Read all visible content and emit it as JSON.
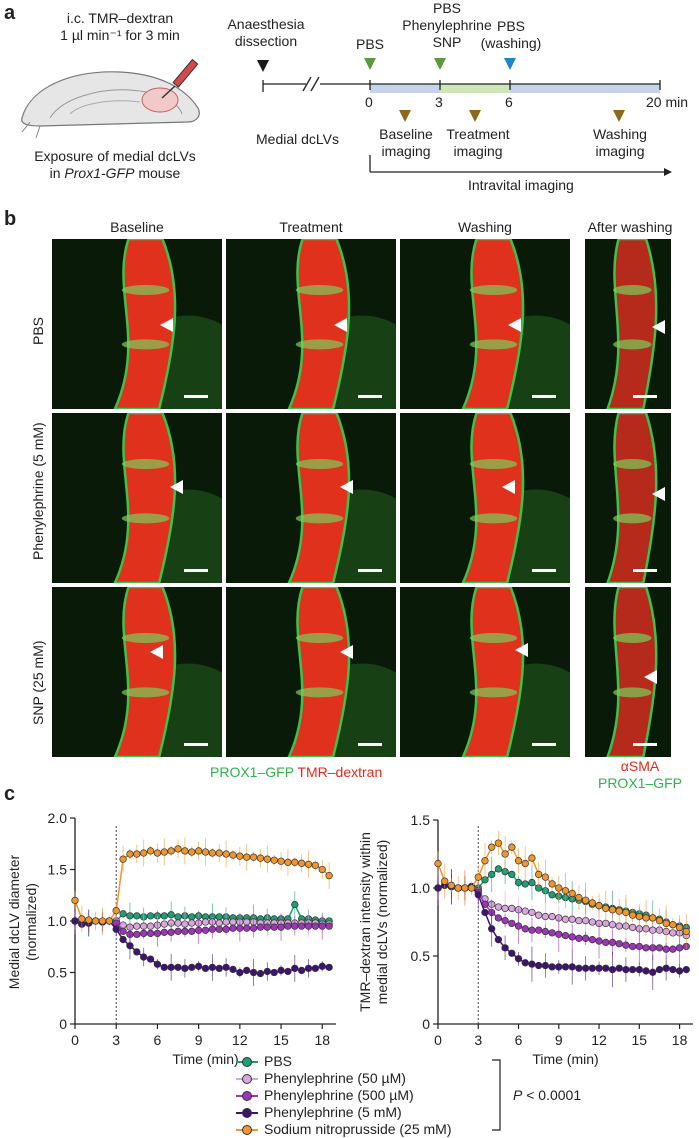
{
  "panel_a": {
    "letter": "a",
    "injection_line1": "i.c. TMR–dextran",
    "injection_line2": "1 µl min⁻¹ for 3 min",
    "exposure_line1": "Exposure of medial dcLVs",
    "exposure_line2_pre": "in ",
    "exposure_line2_italic": "Prox1-GFP",
    "exposure_line2_post": " mouse",
    "anaesthesia_line1": "Anaesthesia",
    "anaesthesia_line2": "dissection",
    "pbs": "PBS",
    "pbs_top": "PBS",
    "phenylephrine": "Phenylephrine",
    "snp": "SNP",
    "pbs_washing_line1": "PBS",
    "pbs_washing_line2": "(washing)",
    "tick_0": "0",
    "tick_3": "3",
    "tick_6": "6",
    "tick_20": "20 min",
    "medial_dclvs": "Medial dcLVs",
    "baseline_line1": "Baseline",
    "baseline_line2": "imaging",
    "treatment_line1": "Treatment",
    "treatment_line2": "imaging",
    "washing_line1": "Washing",
    "washing_line2": "imaging",
    "intravital": "Intravital imaging",
    "colors": {
      "black_arrow": "#1a1a1a",
      "green_arrow": "#5a9a3a",
      "blue_arrow": "#1f86c8",
      "brown_arrow": "#8a6a1a",
      "bar_blue": "#c5d4ec",
      "bar_green": "#cfe6b8"
    }
  },
  "panel_b": {
    "letter": "b",
    "columns": [
      "Baseline",
      "Treatment",
      "Washing",
      "After washing"
    ],
    "rows": [
      "PBS",
      "Phenylephrine (5 mM)",
      "SNP (25 mM)"
    ],
    "legend_green": "PROX1–GFP",
    "legend_red": "TMR–dextran",
    "legend_asma": "αSMA",
    "legend_prox1": "PROX1–GFP",
    "colors": {
      "green": "#2fb24a",
      "red": "#e8261a"
    }
  },
  "panel_c": {
    "letter": "c",
    "legend": [
      "PBS",
      "Phenylephrine (50 µM)",
      "Phenylephrine (500  µM)",
      "Phenylephrine (5 mM)",
      "Sodium nitroprusside (25 mM)"
    ],
    "p_label_italic": "P",
    "p_label_rest": " < 0.0001",
    "series_colors": [
      "#1f9e74",
      "#d9a6e0",
      "#9c35b8",
      "#3d1470",
      "#f0962a"
    ]
  },
  "chart_data": [
    {
      "type": "line",
      "ylabel": "Medial dcLV diameter (normalized)",
      "xlabel": "Time (min)",
      "xlim": [
        0,
        19
      ],
      "ylim": [
        0,
        2.0
      ],
      "xticks": [
        0,
        3,
        6,
        9,
        12,
        15,
        18
      ],
      "yticks": [
        0,
        0.5,
        1.0,
        1.5,
        2.0
      ],
      "ytick_labels": [
        "0",
        "0.5",
        "1.0",
        "1.5",
        "2.0"
      ],
      "vline_x": 3,
      "x": [
        0,
        0.5,
        1,
        1.5,
        2,
        2.5,
        3,
        3.5,
        4,
        4.5,
        5,
        5.5,
        6,
        6.5,
        7,
        7.5,
        8,
        8.5,
        9,
        9.5,
        10,
        10.5,
        11,
        11.5,
        12,
        12.5,
        13,
        13.5,
        14,
        14.5,
        15,
        15.5,
        16,
        16.5,
        17,
        17.5,
        18,
        18.5
      ],
      "series": [
        {
          "name": "PBS",
          "values": [
            1.0,
            0.97,
            0.98,
            1.0,
            0.99,
            1.0,
            1.0,
            1.07,
            1.05,
            1.05,
            1.04,
            1.05,
            1.05,
            1.05,
            1.06,
            1.04,
            1.05,
            1.04,
            1.05,
            1.04,
            1.04,
            1.04,
            1.04,
            1.03,
            1.03,
            1.03,
            1.03,
            1.02,
            1.03,
            1.02,
            1.02,
            1.02,
            1.16,
            1.02,
            1.02,
            1.01,
            1.0,
            1.0
          ]
        },
        {
          "name": "Phenylephrine (50 µM)",
          "values": [
            1.0,
            0.97,
            0.98,
            1.0,
            0.99,
            1.0,
            1.0,
            0.96,
            0.94,
            0.95,
            0.95,
            0.95,
            0.96,
            0.97,
            0.98,
            0.98,
            0.97,
            0.98,
            0.98,
            0.99,
            0.99,
            0.98,
            0.99,
            0.99,
            0.99,
            0.99,
            0.99,
            0.98,
            0.98,
            0.98,
            0.98,
            0.98,
            0.98,
            0.98,
            0.98,
            0.98,
            0.97,
            0.97
          ]
        },
        {
          "name": "Phenylephrine (500  µM)",
          "values": [
            1.0,
            0.97,
            0.98,
            1.0,
            0.99,
            1.0,
            0.98,
            0.9,
            0.87,
            0.87,
            0.88,
            0.88,
            0.88,
            0.89,
            0.89,
            0.9,
            0.9,
            0.9,
            0.91,
            0.91,
            0.92,
            0.92,
            0.92,
            0.93,
            0.93,
            0.93,
            0.93,
            0.94,
            0.94,
            0.94,
            0.94,
            0.95,
            0.95,
            0.95,
            0.95,
            0.95,
            0.95,
            0.95
          ]
        },
        {
          "name": "Phenylephrine (5 mM)",
          "values": [
            1.0,
            0.97,
            0.98,
            1.0,
            0.99,
            1.0,
            0.92,
            0.82,
            0.76,
            0.7,
            0.65,
            0.63,
            0.58,
            0.55,
            0.55,
            0.55,
            0.54,
            0.55,
            0.56,
            0.54,
            0.55,
            0.54,
            0.55,
            0.53,
            0.5,
            0.52,
            0.5,
            0.49,
            0.51,
            0.5,
            0.52,
            0.51,
            0.54,
            0.52,
            0.54,
            0.54,
            0.56,
            0.55
          ]
        },
        {
          "name": "Sodium nitroprusside (25 mM)",
          "values": [
            1.2,
            1.02,
            1.01,
            1.0,
            1.0,
            1.0,
            1.1,
            1.6,
            1.65,
            1.65,
            1.66,
            1.68,
            1.66,
            1.67,
            1.68,
            1.7,
            1.68,
            1.67,
            1.68,
            1.67,
            1.66,
            1.66,
            1.65,
            1.64,
            1.63,
            1.62,
            1.62,
            1.61,
            1.6,
            1.59,
            1.58,
            1.57,
            1.57,
            1.56,
            1.55,
            1.54,
            1.5,
            1.44
          ]
        }
      ]
    },
    {
      "type": "line",
      "ylabel": "TMR–dextran intensity within medial dcLVs (normalized)",
      "xlabel": "Time (min)",
      "xlim": [
        0,
        19
      ],
      "ylim": [
        0,
        1.5
      ],
      "xticks": [
        0,
        3,
        6,
        9,
        12,
        15,
        18
      ],
      "yticks": [
        0,
        0.5,
        1.0,
        1.5
      ],
      "ytick_labels": [
        "0",
        "0.5",
        "1.0",
        "1.5"
      ],
      "vline_x": 3,
      "x": [
        0,
        0.5,
        1,
        1.5,
        2,
        2.5,
        3,
        3.5,
        4,
        4.5,
        5,
        5.5,
        6,
        6.5,
        7,
        7.5,
        8,
        8.5,
        9,
        9.5,
        10,
        10.5,
        11,
        11.5,
        12,
        12.5,
        13,
        13.5,
        14,
        14.5,
        15,
        15.5,
        16,
        16.5,
        17,
        17.5,
        18,
        18.5
      ],
      "series": [
        {
          "name": "PBS",
          "values": [
            1.0,
            1.02,
            1.01,
            1.0,
            1.0,
            1.01,
            1.0,
            1.06,
            1.1,
            1.14,
            1.12,
            1.1,
            1.04,
            1.03,
            1.04,
            1.0,
            0.98,
            0.95,
            0.94,
            0.93,
            0.92,
            0.91,
            0.9,
            0.88,
            0.87,
            0.86,
            0.85,
            0.84,
            0.83,
            0.82,
            0.81,
            0.8,
            0.78,
            0.77,
            0.75,
            0.73,
            0.72,
            0.71
          ]
        },
        {
          "name": "Phenylephrine (50 µM)",
          "values": [
            1.0,
            1.02,
            1.01,
            1.0,
            1.0,
            1.01,
            0.98,
            0.92,
            0.88,
            0.86,
            0.85,
            0.85,
            0.84,
            0.83,
            0.82,
            0.8,
            0.79,
            0.79,
            0.78,
            0.77,
            0.77,
            0.76,
            0.76,
            0.75,
            0.74,
            0.74,
            0.73,
            0.72,
            0.72,
            0.71,
            0.7,
            0.7,
            0.69,
            0.69,
            0.68,
            0.67,
            0.67,
            0.65
          ]
        },
        {
          "name": "Phenylephrine (500  µM)",
          "values": [
            1.0,
            1.02,
            1.01,
            1.0,
            1.0,
            1.01,
            0.97,
            0.88,
            0.82,
            0.78,
            0.76,
            0.74,
            0.72,
            0.7,
            0.69,
            0.69,
            0.68,
            0.67,
            0.66,
            0.65,
            0.64,
            0.63,
            0.63,
            0.62,
            0.61,
            0.6,
            0.6,
            0.59,
            0.58,
            0.57,
            0.57,
            0.56,
            0.56,
            0.56,
            0.55,
            0.55,
            0.56,
            0.57
          ]
        },
        {
          "name": "Phenylephrine (5 mM)",
          "values": [
            1.0,
            1.02,
            1.01,
            1.0,
            1.0,
            1.01,
            0.95,
            0.82,
            0.7,
            0.62,
            0.56,
            0.52,
            0.48,
            0.45,
            0.44,
            0.43,
            0.43,
            0.42,
            0.42,
            0.42,
            0.42,
            0.41,
            0.41,
            0.41,
            0.41,
            0.41,
            0.4,
            0.41,
            0.4,
            0.4,
            0.4,
            0.39,
            0.38,
            0.4,
            0.41,
            0.4,
            0.39,
            0.4
          ]
        },
        {
          "name": "Sodium nitroprusside (25 mM)",
          "values": [
            1.18,
            1.05,
            1.02,
            1.0,
            1.0,
            1.0,
            1.08,
            1.2,
            1.3,
            1.33,
            1.25,
            1.3,
            1.2,
            1.18,
            1.22,
            1.1,
            1.08,
            1.03,
            1.0,
            0.98,
            0.96,
            0.93,
            0.91,
            0.89,
            0.87,
            0.85,
            0.84,
            0.83,
            0.82,
            0.8,
            0.79,
            0.78,
            0.78,
            0.76,
            0.74,
            0.73,
            0.71,
            0.68
          ]
        }
      ]
    }
  ]
}
